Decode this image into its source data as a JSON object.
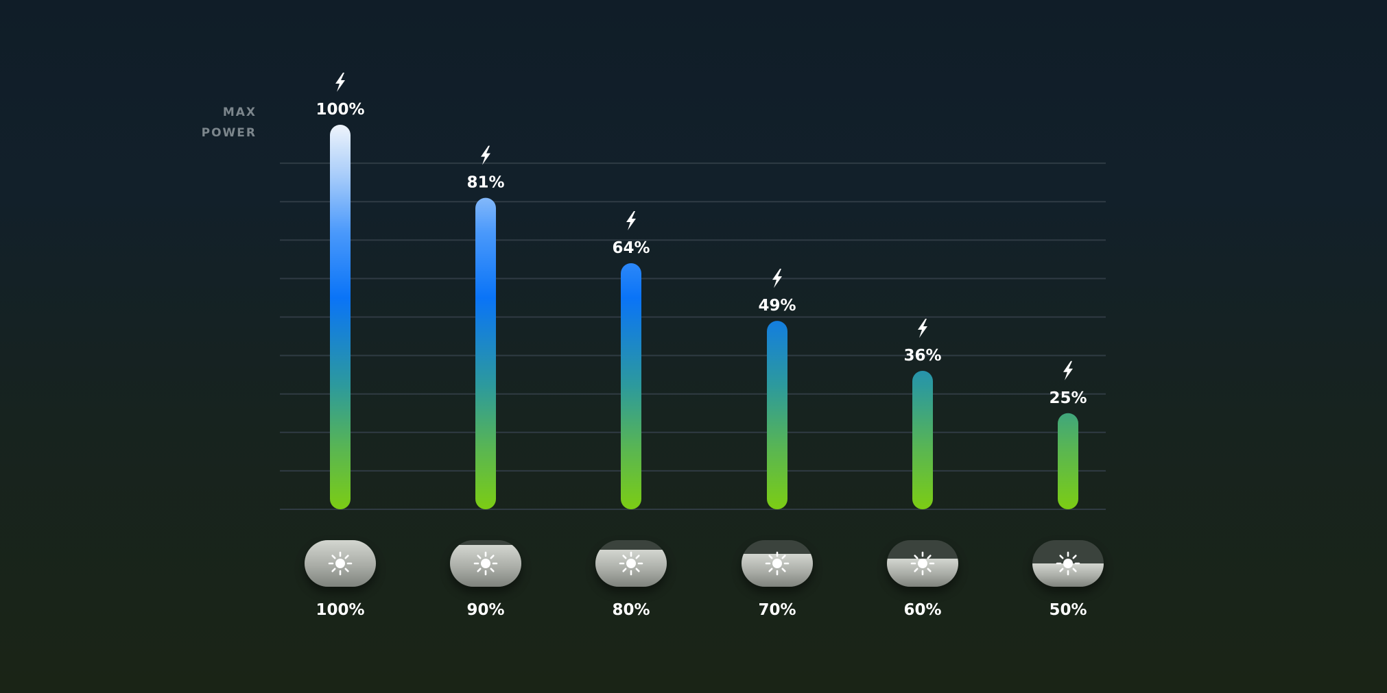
{
  "chart_data": {
    "type": "bar",
    "max_label_lines": [
      "MAX",
      "POWER"
    ],
    "categories": [
      "100%",
      "90%",
      "80%",
      "70%",
      "60%",
      "50%"
    ],
    "brightness_levels": [
      1.0,
      0.9,
      0.8,
      0.7,
      0.6,
      0.5
    ],
    "values": [
      100,
      81,
      64,
      49,
      36,
      25
    ],
    "value_labels": [
      "100%",
      "81%",
      "64%",
      "49%",
      "36%",
      "25%"
    ],
    "ylim": [
      0,
      100
    ],
    "grid": true,
    "icons": {
      "value": "lightning-bolt-icon",
      "category": "sun-icon"
    },
    "colors": {
      "bar_top": "#eef4fb",
      "bar_mid": "#0a74f7",
      "bar_bottom": "#7ccd14",
      "gridline": "#35404a"
    }
  }
}
